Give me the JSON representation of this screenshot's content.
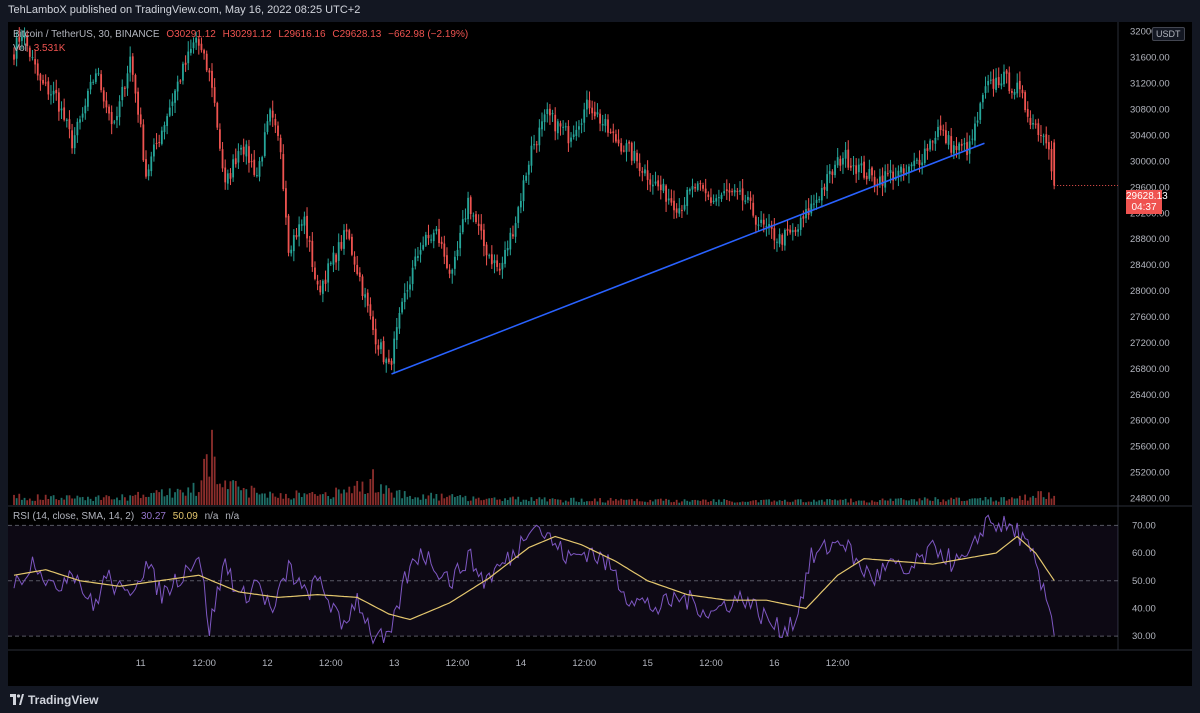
{
  "header": {
    "published_text": "TehLamboX published on TradingView.com, May 16, 2022 08:25 UTC+2"
  },
  "legend": {
    "symbol": "Bitcoin / TetherUS, 30, BINANCE",
    "open": "O30291.12",
    "high": "H30291.12",
    "low": "L29616.16",
    "close": "C29628.13",
    "change": "−662.98 (−2.19%)",
    "volume_label": "Vol",
    "volume_value": "3.531K"
  },
  "rsi_legend": {
    "label": "RSI (14, close, SMA, 14, 2)",
    "rsi_value": "30.27",
    "sma_value": "50.09",
    "na1": "n/a",
    "na2": "n/a"
  },
  "price_badge": {
    "price": "29628.13",
    "countdown": "04:37"
  },
  "currency": "USDT",
  "footer": {
    "brand": "TradingView"
  },
  "colors": {
    "up": "#26a69a",
    "down": "#ef5350",
    "trendline": "#2962ff",
    "rsi": "#7e57c2",
    "rsi_sma": "#e4c76e",
    "background": "#000000"
  },
  "chart_data": [
    {
      "type": "candlestick",
      "title": "Bitcoin / TetherUS, 30, BINANCE",
      "ylim": [
        24700,
        32150
      ],
      "price_ticks": [
        32000,
        31600,
        31200,
        30800,
        30400,
        30000,
        29600,
        29200,
        28800,
        28400,
        28000,
        27600,
        27200,
        26800,
        26400,
        26000,
        25600,
        25200,
        24800
      ],
      "price_tick_labels": [
        "32000.00",
        "31600.00",
        "31200.00",
        "30800.00",
        "30400.00",
        "30000.00",
        "29600.00",
        "29200.00",
        "28800.00",
        "28400.00",
        "28000.00",
        "27600.00",
        "27200.00",
        "26800.00",
        "26400.00",
        "26000.00",
        "25600.00",
        "25200.00",
        "24800.00"
      ],
      "x_tick_labels": [
        "11",
        "12:00",
        "12",
        "12:00",
        "13",
        "12:00",
        "14",
        "12:00",
        "15",
        "12:00",
        "16",
        "12:00"
      ],
      "x_tick_hours": [
        24,
        36,
        48,
        60,
        72,
        84,
        96,
        108,
        120,
        132,
        144,
        156
      ],
      "start_time": "May 10, 2022 ~06:30 UTC+2",
      "anchors_price": [
        [
          0,
          31700
        ],
        [
          3,
          32000
        ],
        [
          10,
          31200
        ],
        [
          16,
          31000
        ],
        [
          22,
          30300
        ],
        [
          26,
          30700
        ],
        [
          31,
          31400
        ],
        [
          38,
          30500
        ],
        [
          44,
          31600
        ],
        [
          47,
          30800
        ],
        [
          50,
          29800
        ],
        [
          56,
          30500
        ],
        [
          62,
          31200
        ],
        [
          69,
          31900
        ],
        [
          75,
          31200
        ],
        [
          80,
          29600
        ],
        [
          86,
          30300
        ],
        [
          92,
          29800
        ],
        [
          97,
          30700
        ],
        [
          101,
          30200
        ],
        [
          104,
          28700
        ],
        [
          110,
          29100
        ],
        [
          115,
          28000
        ],
        [
          120,
          28400
        ],
        [
          126,
          28900
        ],
        [
          131,
          28200
        ],
        [
          136,
          27400
        ],
        [
          142,
          26800
        ],
        [
          148,
          27900
        ],
        [
          154,
          28700
        ],
        [
          160,
          28900
        ],
        [
          166,
          28200
        ],
        [
          172,
          29400
        ],
        [
          178,
          28700
        ],
        [
          184,
          28300
        ],
        [
          190,
          29100
        ],
        [
          196,
          30200
        ],
        [
          202,
          30700
        ],
        [
          210,
          30400
        ],
        [
          218,
          30900
        ],
        [
          226,
          30400
        ],
        [
          232,
          30200
        ],
        [
          238,
          29900
        ],
        [
          244,
          29600
        ],
        [
          252,
          29300
        ],
        [
          258,
          29600
        ],
        [
          264,
          29400
        ],
        [
          270,
          29500
        ],
        [
          277,
          29400
        ],
        [
          283,
          29000
        ],
        [
          290,
          28800
        ],
        [
          296,
          28900
        ],
        [
          302,
          29300
        ],
        [
          308,
          29700
        ],
        [
          314,
          30100
        ],
        [
          320,
          29900
        ],
        [
          326,
          29700
        ],
        [
          332,
          29800
        ],
        [
          338,
          29800
        ],
        [
          344,
          30100
        ],
        [
          350,
          30500
        ],
        [
          356,
          30200
        ],
        [
          362,
          30200
        ],
        [
          368,
          31100
        ],
        [
          374,
          31300
        ],
        [
          380,
          31100
        ],
        [
          386,
          30600
        ],
        [
          392,
          30300
        ],
        [
          394,
          29630
        ]
      ],
      "anchors_volume": [
        [
          0,
          60
        ],
        [
          40,
          55
        ],
        [
          60,
          100
        ],
        [
          70,
          120
        ],
        [
          75,
          500
        ],
        [
          76,
          320
        ],
        [
          80,
          140
        ],
        [
          100,
          80
        ],
        [
          120,
          80
        ],
        [
          130,
          140
        ],
        [
          136,
          190
        ],
        [
          140,
          130
        ],
        [
          150,
          70
        ],
        [
          200,
          40
        ],
        [
          300,
          30
        ],
        [
          380,
          50
        ],
        [
          394,
          90
        ]
      ],
      "ylim_volume": [
        0,
        1400
      ],
      "trendline": {
        "start": [
          "May 12 ~07:00",
          26720
        ],
        "end": [
          "May 16 ~18:00",
          30280
        ]
      }
    },
    {
      "type": "line",
      "title": "RSI (14, close, SMA, 14, 2)",
      "ylim": [
        25,
        77
      ],
      "ticks": [
        70,
        60,
        50,
        40,
        30
      ],
      "tick_labels": [
        "70.00",
        "60.00",
        "50.00",
        "40.00",
        "30.00"
      ],
      "bands": [
        70,
        50,
        30
      ],
      "series": [
        {
          "name": "RSI",
          "last": 30.27,
          "anchors": [
            [
              0,
              48
            ],
            [
              8,
              58
            ],
            [
              15,
              46
            ],
            [
              22,
              55
            ],
            [
              30,
              40
            ],
            [
              35,
              52
            ],
            [
              42,
              44
            ],
            [
              50,
              56
            ],
            [
              56,
              45
            ],
            [
              64,
              53
            ],
            [
              70,
              60
            ],
            [
              74,
              33
            ],
            [
              80,
              57
            ],
            [
              86,
              43
            ],
            [
              92,
              50
            ],
            [
              98,
              38
            ],
            [
              104,
              55
            ],
            [
              110,
              45
            ],
            [
              116,
              50
            ],
            [
              124,
              33
            ],
            [
              130,
              44
            ],
            [
              136,
              30
            ],
            [
              142,
              28
            ],
            [
              148,
              50
            ],
            [
              154,
              61
            ],
            [
              160,
              55
            ],
            [
              166,
              50
            ],
            [
              172,
              59
            ],
            [
              178,
              50
            ],
            [
              184,
              55
            ],
            [
              190,
              60
            ],
            [
              196,
              72
            ],
            [
              202,
              66
            ],
            [
              210,
              58
            ],
            [
              218,
              61
            ],
            [
              226,
              55
            ],
            [
              232,
              45
            ],
            [
              238,
              42
            ],
            [
              244,
              40
            ],
            [
              252,
              44
            ],
            [
              258,
              42
            ],
            [
              264,
              38
            ],
            [
              270,
              42
            ],
            [
              277,
              44
            ],
            [
              283,
              38
            ],
            [
              290,
              32
            ],
            [
              296,
              36
            ],
            [
              302,
              58
            ],
            [
              308,
              62
            ],
            [
              314,
              65
            ],
            [
              320,
              55
            ],
            [
              326,
              51
            ],
            [
              332,
              56
            ],
            [
              338,
              52
            ],
            [
              344,
              58
            ],
            [
              350,
              62
            ],
            [
              356,
              56
            ],
            [
              362,
              58
            ],
            [
              368,
              72
            ],
            [
              374,
              70
            ],
            [
              380,
              68
            ],
            [
              386,
              58
            ],
            [
              390,
              45
            ],
            [
              392,
              42
            ],
            [
              394,
              30.27
            ]
          ]
        },
        {
          "name": "RSI-based MA",
          "last": 50.09,
          "anchors": [
            [
              0,
              52
            ],
            [
              12,
              54
            ],
            [
              25,
              50
            ],
            [
              40,
              48
            ],
            [
              55,
              50
            ],
            [
              70,
              52
            ],
            [
              85,
              46
            ],
            [
              100,
              44
            ],
            [
              115,
              45
            ],
            [
              130,
              44
            ],
            [
              142,
              38
            ],
            [
              150,
              36
            ],
            [
              165,
              42
            ],
            [
              180,
              51
            ],
            [
              195,
              62
            ],
            [
              205,
              66
            ],
            [
              215,
              63
            ],
            [
              228,
              57
            ],
            [
              240,
              50
            ],
            [
              255,
              45
            ],
            [
              270,
              43
            ],
            [
              285,
              43
            ],
            [
              300,
              40
            ],
            [
              312,
              52
            ],
            [
              322,
              58
            ],
            [
              335,
              57
            ],
            [
              348,
              56
            ],
            [
              360,
              58
            ],
            [
              372,
              60
            ],
            [
              380,
              66
            ],
            [
              387,
              60
            ],
            [
              394,
              50.09
            ]
          ]
        }
      ]
    }
  ]
}
